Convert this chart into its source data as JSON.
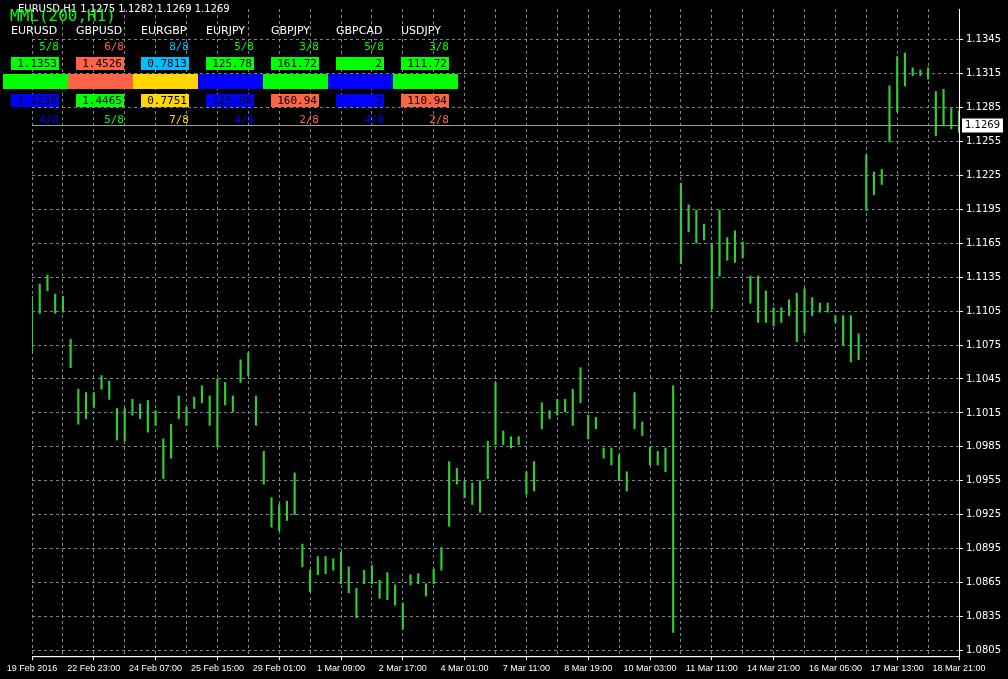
{
  "chart_data": {
    "type": "bar",
    "color": "#32cd32",
    "categories": [
      "19 Feb 2016",
      null,
      null,
      null,
      null,
      null,
      null,
      null,
      "22 Feb 23:00",
      null,
      null,
      null,
      null,
      null,
      null,
      null,
      "24 Feb 07:00",
      null,
      null,
      null,
      null,
      null,
      null,
      null,
      "25 Feb 15:00",
      null,
      null,
      null,
      null,
      null,
      null,
      null,
      "29 Feb 01:00",
      null,
      null,
      null,
      null,
      null,
      null,
      null,
      "1 Mar 09:00",
      null,
      null,
      null,
      null,
      null,
      null,
      null,
      "2 Mar 17:00",
      null,
      null,
      null,
      null,
      null,
      null,
      null,
      "4 Mar 01:00",
      null,
      null,
      null,
      null,
      null,
      null,
      null,
      "7 Mar 11:00",
      null,
      null,
      null,
      null,
      null,
      null,
      null,
      "8 Mar 19:00",
      null,
      null,
      null,
      null,
      null,
      null,
      null,
      "10 Mar 03:00",
      null,
      null,
      null,
      null,
      null,
      null,
      null,
      "11 Mar 11:00",
      null,
      null,
      null,
      null,
      null,
      null,
      null,
      "14 Mar 21:00",
      null,
      null,
      null,
      null,
      null,
      null,
      null,
      "16 Mar 05:00",
      null,
      null,
      null,
      null,
      null,
      null,
      null,
      "17 Mar 13:00",
      null,
      null,
      null,
      null,
      null,
      null,
      null,
      "18 Mar 21:00"
    ],
    "base": [
      1.1068,
      1.1103,
      1.1123,
      1.1103,
      1.1104,
      1.1055,
      1.1005,
      1.101,
      1.102,
      1.1036,
      1.1027,
      1.0991,
      1.099,
      1.1013,
      1.101,
      1.0998,
      1.1004,
      1.0957,
      1.0975,
      1.101,
      1.1004,
      1.1019,
      1.1024,
      1.1004,
      1.0985,
      1.1022,
      1.1016,
      1.1042,
      1.1048,
      1.1004,
      1.0952,
      1.0914,
      1.0911,
      1.092,
      1.0925,
      1.0879,
      1.0857,
      1.0872,
      1.0873,
      1.0876,
      1.0864,
      1.0856,
      1.0834,
      1.0864,
      1.0864,
      1.0851,
      1.085,
      1.0845,
      1.0824,
      1.0863,
      1.0864,
      1.0853,
      1.0864,
      1.0876,
      1.0915,
      1.0952,
      1.094,
      1.0934,
      1.0927,
      1.0957,
      1.0987,
      1.0987,
      1.0984,
      1.0987,
      1.0943,
      1.0946,
      1.1001,
      1.101,
      1.1013,
      1.1016,
      1.1004,
      1.1024,
      1.0992,
      1.1001,
      1.0975,
      1.0969,
      1.0955,
      1.0946,
      1.1001,
      1.0995,
      1.0969,
      1.0969,
      1.0963,
      1.0821,
      1.1147,
      1.1175,
      1.1165,
      1.1168,
      1.1107,
      1.1136,
      1.115,
      1.1148,
      1.1152,
      1.1112,
      1.1095,
      1.1095,
      1.1092,
      1.1095,
      1.1101,
      1.1078,
      1.1086,
      1.1101,
      1.1104,
      1.1104,
      1.1095,
      1.1075,
      1.106,
      1.1062,
      1.1194,
      1.1208,
      1.1217,
      1.1255,
      1.1281,
      1.1304,
      1.1313,
      1.1313,
      1.131,
      1.126,
      1.1269,
      1.1266,
      1.1263
    ],
    "values": [
      0.005,
      0.0026,
      0.0014,
      0.0017,
      0.0014,
      0.0025,
      0.0031,
      0.0023,
      0.0013,
      0.0012,
      0.0016,
      0.0028,
      0.0029,
      0.0014,
      0.0013,
      0.0028,
      0.0013,
      0.0035,
      0.003,
      0.002,
      0.0016,
      0.001,
      0.0015,
      0.0026,
      0.006,
      0.002,
      0.0014,
      0.002,
      0.002,
      0.0026,
      0.0029,
      0.0026,
      0.0023,
      0.0017,
      0.0037,
      0.002,
      0.0019,
      0.0016,
      0.0015,
      0.001,
      0.0028,
      0.0023,
      0.0026,
      0.0012,
      0.0016,
      0.0016,
      0.0024,
      0.0018,
      0.0023,
      0.0009,
      0.0009,
      0.0011,
      0.0013,
      0.002,
      0.0057,
      0.0014,
      0.0015,
      0.0019,
      0.0028,
      0.0033,
      0.0055,
      0.0012,
      0.001,
      0.0007,
      0.002,
      0.0026,
      0.0023,
      0.0007,
      0.0014,
      0.0011,
      0.0032,
      0.0031,
      0.0021,
      0.001,
      0.0009,
      0.0015,
      0.0023,
      0.0017,
      0.0032,
      0.0012,
      0.0016,
      0.0012,
      0.0021,
      0.0218,
      0.0071,
      0.0024,
      0.0029,
      0.0014,
      0.0058,
      0.0058,
      0.002,
      0.0028,
      0.0014,
      0.0024,
      0.0041,
      0.0028,
      0.0016,
      0.0013,
      0.0014,
      0.0043,
      0.0039,
      0.0016,
      0.0008,
      0.0008,
      0.0006,
      0.0026,
      0.0041,
      0.0023,
      0.0049,
      0.002,
      0.0013,
      0.0049,
      0.0049,
      0.0029,
      0.0007,
      0.0005,
      0.001,
      0.0039,
      0.0032,
      0.0018,
      0.0019
    ],
    "ylim": [
      1.08,
      1.1372
    ],
    "yticks": [
      1.0805,
      1.0835,
      1.0865,
      1.0895,
      1.0925,
      1.0955,
      1.0985,
      1.1015,
      1.1045,
      1.1075,
      1.1105,
      1.1135,
      1.1165,
      1.1195,
      1.1225,
      1.1255,
      1.1285,
      1.1315,
      1.1345
    ],
    "grid": true,
    "ref_lines": [
      {
        "axis": "y",
        "value": 1.1269,
        "label": "1.1269",
        "color": "#a0a0a0"
      }
    ],
    "annotations": [
      "EURUSD,H1  1.1275 1.1282 1.1269 1.1269",
      "MML(200,H1)",
      "EURUSD",
      "5/8",
      "1.1353",
      "1.1230",
      "4/8",
      "GBPUSD",
      "6/8",
      "1.4526",
      "1.4465",
      "5/8",
      "EURGBP",
      "8/8",
      "0.7813",
      "0.7751",
      "7/8",
      "EURJPY",
      "5/8",
      "125.78",
      "125.00",
      "4/8",
      "GBPJPY",
      "3/8",
      "161.72",
      "160.94",
      "2/8",
      "GBPCAD",
      "5/8",
      "2",
      "2",
      "4/8",
      "USDJPY",
      "3/8",
      "111.72",
      "110.94",
      "2/8"
    ]
  }
}
